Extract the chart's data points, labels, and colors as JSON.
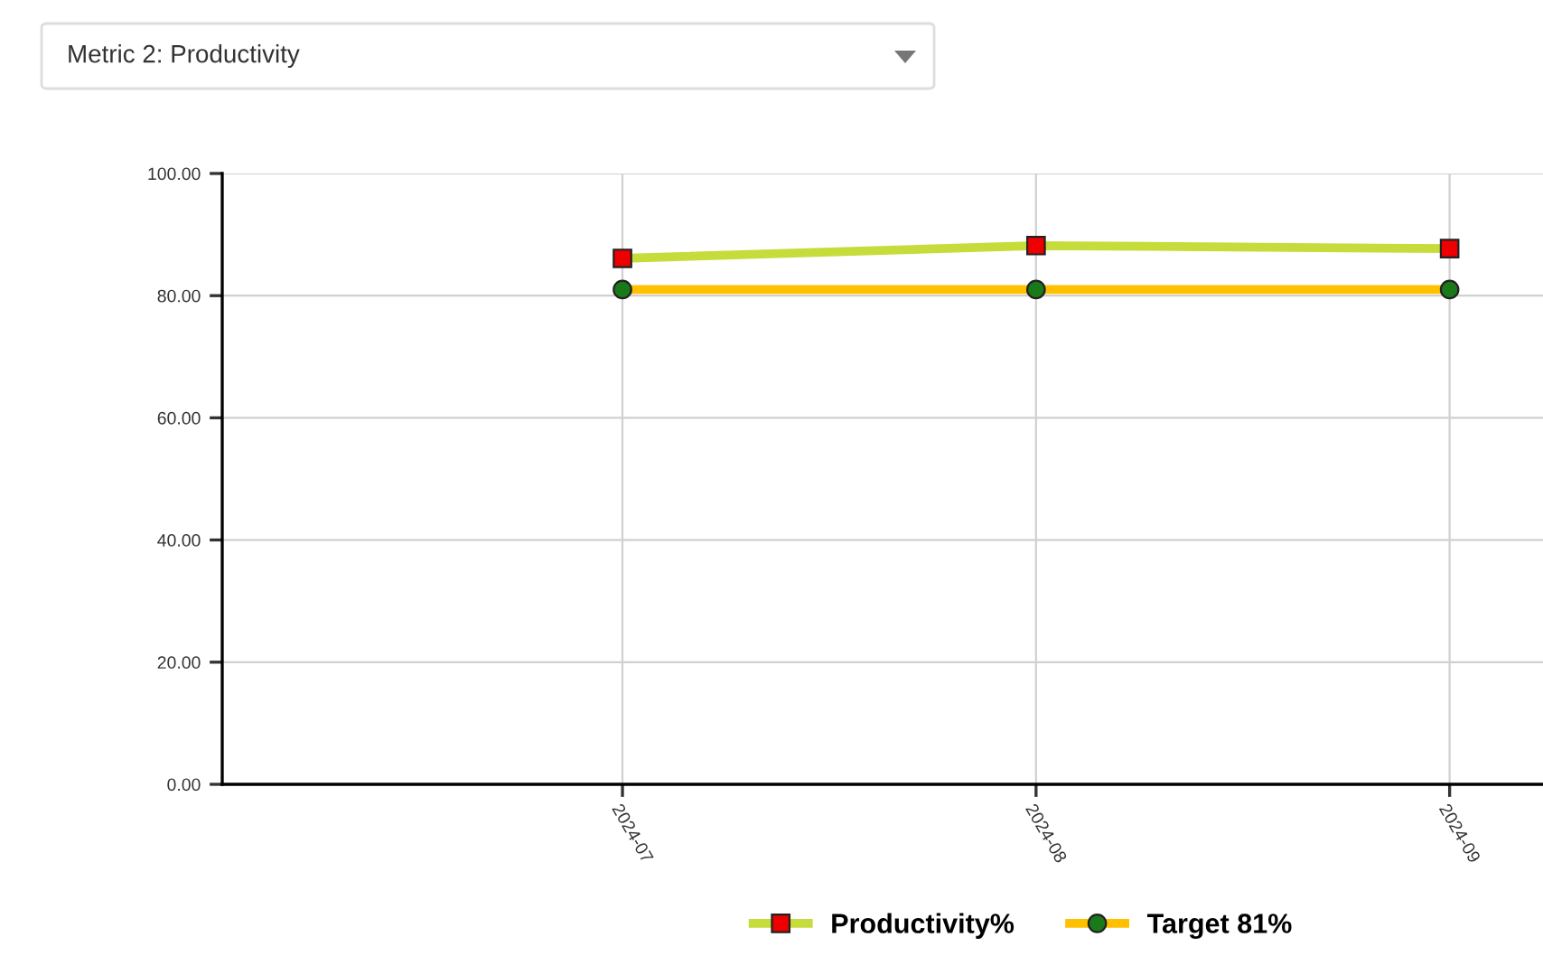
{
  "chart_data": {
    "type": "line",
    "title": "Metric 2: Productivity",
    "x": [
      "2024-07-01",
      "2024-08-01",
      "2024-09-01"
    ],
    "series": [
      {
        "name": "Productivity%",
        "color": "#c6dc3a",
        "marker": "square",
        "values": [
          86.1,
          88.2,
          87.7
        ]
      },
      {
        "name": "Target 81%",
        "color": "#ffc000",
        "marker": "circle",
        "values": [
          81,
          81,
          81
        ]
      }
    ],
    "xlim": [
      "2024-06-01",
      "2024-09-08"
    ],
    "xticks": [
      {
        "value": "2024-07-01",
        "label": "2024-07"
      },
      {
        "value": "2024-08-01",
        "label": "2024-08"
      },
      {
        "value": "2024-09-01",
        "label": "2024-09"
      }
    ],
    "ylim": [
      0,
      100
    ],
    "yticks": [
      {
        "value": 0,
        "label": "0.00"
      },
      {
        "value": 20,
        "label": "20.00"
      },
      {
        "value": 40,
        "label": "40.00"
      },
      {
        "value": 60,
        "label": "60.00"
      },
      {
        "value": 80,
        "label": "80.00"
      },
      {
        "value": 100,
        "label": "100.00"
      }
    ],
    "grid": true,
    "legend": "bottom",
    "line_style": "solid"
  }
}
